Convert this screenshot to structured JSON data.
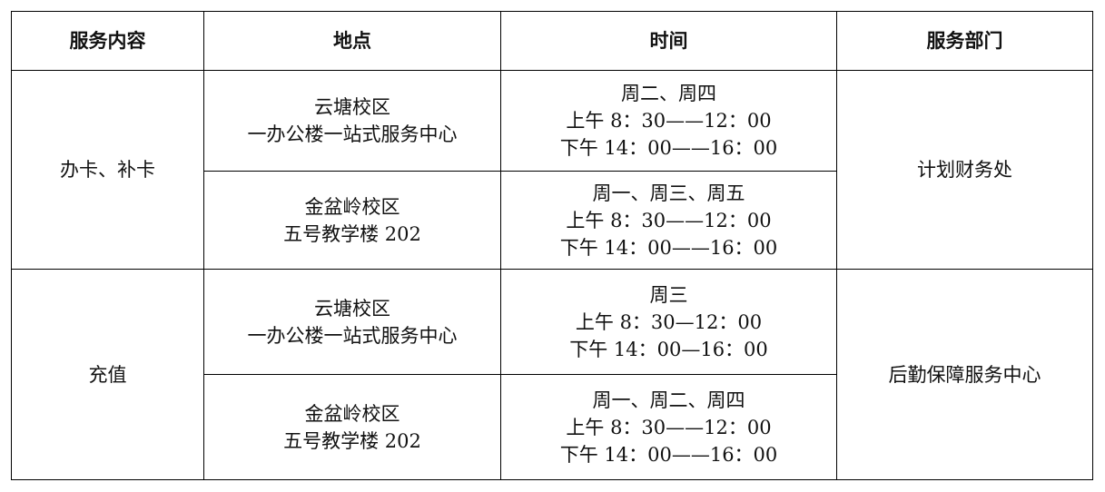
{
  "headers": [
    "服务内容",
    "地点",
    "时间",
    "服务部门"
  ],
  "groups": [
    {
      "service": "办卡、补卡",
      "department": "计划财务处",
      "rows": [
        {
          "location": [
            "云塘校区",
            "一办公楼一站式服务中心"
          ],
          "time": [
            "周二、周四",
            "上午 8：30——12：00",
            "下午 14：00——16：00"
          ]
        },
        {
          "location": [
            "金盆岭校区",
            "五号教学楼 202"
          ],
          "time": [
            "周一、周三、周五",
            "上午 8：30——12：00",
            "下午 14：00——16：00"
          ]
        }
      ]
    },
    {
      "service": "充值",
      "department": "后勤保障服务中心",
      "rows": [
        {
          "location": [
            "云塘校区",
            "一办公楼一站式服务中心"
          ],
          "time": [
            "周三",
            "上午 8：30—12：00",
            "下午 14：00—16：00"
          ]
        },
        {
          "location": [
            "金盆岭校区",
            "五号教学楼 202"
          ],
          "time": [
            "周一、周二、周四",
            "上午 8：30——12：00",
            "下午 14：00——16：00"
          ]
        }
      ]
    }
  ]
}
